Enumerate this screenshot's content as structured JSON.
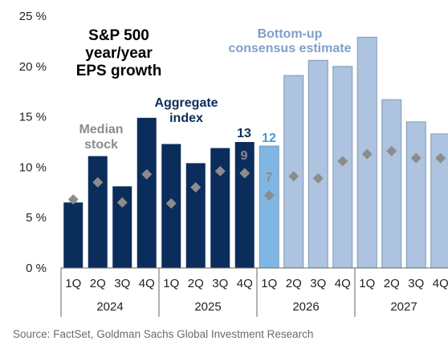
{
  "chart_data": {
    "type": "bar",
    "title_lines": [
      "S&P 500",
      "year/year",
      "EPS growth"
    ],
    "ylabel": "",
    "xlabel": "",
    "ylim": [
      0,
      25
    ],
    "yticks": [
      0,
      5,
      10,
      15,
      20,
      25
    ],
    "ytick_labels": [
      "0 %",
      "5 %",
      "10 %",
      "15 %",
      "20 %",
      "25 %"
    ],
    "categories": [
      "1Q",
      "2Q",
      "3Q",
      "4Q",
      "1Q",
      "2Q",
      "3Q",
      "4Q",
      "1Q",
      "2Q",
      "3Q",
      "4Q",
      "1Q",
      "2Q",
      "3Q",
      "4Q"
    ],
    "years": [
      "2024",
      "2025",
      "2026",
      "2027"
    ],
    "series": [
      {
        "name": "Aggregate index",
        "values": [
          6.5,
          11.1,
          8.1,
          14.9,
          12.3,
          10.4,
          11.9,
          12.5,
          12.1,
          19.1,
          20.6,
          20.0,
          22.9,
          16.7,
          14.5,
          13.3
        ]
      },
      {
        "name": "Median stock",
        "values": [
          6.8,
          8.5,
          6.5,
          9.3,
          6.4,
          8.0,
          9.6,
          9.4,
          7.2,
          9.1,
          8.9,
          10.6,
          11.3,
          11.6,
          10.9,
          10.9
        ]
      }
    ],
    "bar_colors": {
      "actual": "#0b2d5b",
      "current": "#7fb6e3",
      "estimate": "#adc3df",
      "estimate_border": "#7f97b8"
    },
    "marker_color": "#8c8c8c",
    "annotations": {
      "median_stock": [
        "Median",
        "stock"
      ],
      "aggregate_index": [
        "Aggregate",
        "index"
      ],
      "bottom_up": [
        "Bottom-up",
        "consensus estimate"
      ],
      "value_4q25_agg": "13",
      "value_4q25_med": "9",
      "value_1q26_agg": "12",
      "value_1q26_med": "7"
    },
    "annotation_colors": {
      "median_stock": "#8c8c8c",
      "aggregate_index": "#0b2d5b",
      "bottom_up": "#7f9fc9",
      "value_agg_actual": "#0b2d5b",
      "value_med": "#8c8c8c",
      "value_agg_current": "#4a9ad8"
    },
    "grid": false,
    "legend": "none"
  },
  "source": "Source: FactSet, Goldman Sachs Global Investment Research"
}
